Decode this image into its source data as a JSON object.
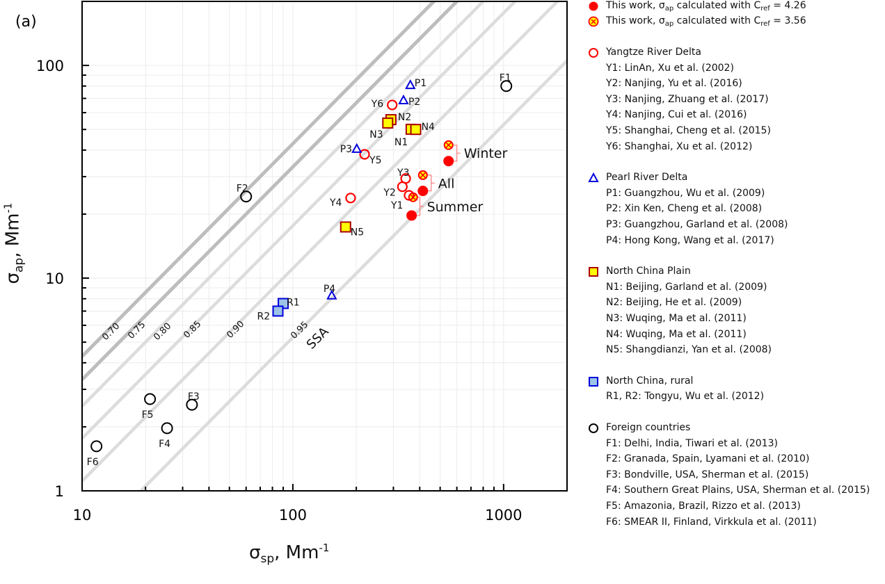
{
  "chart_data": {
    "type": "scatter",
    "panel_label": "(a)",
    "xlabel": {
      "symbol": "σ",
      "sub": "sp",
      "unit": ", Mm",
      "sup": "-1"
    },
    "ylabel": {
      "symbol": "σ",
      "sub": "ap",
      "unit": ", Mm",
      "sup": "-1"
    },
    "x_scale": "log",
    "y_scale": "log",
    "xlim": [
      10,
      2000
    ],
    "ylim": [
      1,
      200
    ],
    "x_ticks": [
      "10",
      "100",
      "1000"
    ],
    "y_ticks": [
      "1",
      "10",
      "100"
    ],
    "grid": true,
    "legend_placement": "right-outside",
    "ssa_lines": {
      "values": [
        0.7,
        0.75,
        0.8,
        0.85,
        0.9,
        0.95
      ],
      "labels": [
        "0.70",
        "0.75",
        "0.80",
        "0.85",
        "0.90",
        "0.95"
      ],
      "title": "SSA"
    },
    "colors": {
      "red": "#ff0000",
      "blue": "#0000dd",
      "yellow": "#ffff00",
      "darkred": "#aa0000",
      "lightblue": "#9dc3e6",
      "gray": "#bbbbbb"
    },
    "series": [
      {
        "name": "This work, σap calculated with Cref = 4.26",
        "marker": "filled-circle",
        "points": [
          {
            "label": "Winter",
            "x": 548,
            "y": 35.5
          },
          {
            "label": "All",
            "x": 414,
            "y": 25.7
          },
          {
            "label": "Summer",
            "x": 366,
            "y": 19.7
          }
        ]
      },
      {
        "name": "This work, σap calculated with Cref = 3.56",
        "marker": "crossed-circle",
        "points": [
          {
            "label": "Winter",
            "x": 548,
            "y": 42.2
          },
          {
            "label": "All",
            "x": 414,
            "y": 30.5
          },
          {
            "label": "Summer",
            "x": 372,
            "y": 24.0
          }
        ]
      },
      {
        "name": "Yangtze River Delta",
        "marker": "open-circle-red",
        "points": [
          {
            "label": "Y1",
            "x": 356,
            "y": 24.5
          },
          {
            "label": "Y2",
            "x": 331,
            "y": 26.9
          },
          {
            "label": "Y3",
            "x": 343,
            "y": 29.4
          },
          {
            "label": "Y4",
            "x": 188,
            "y": 23.8
          },
          {
            "label": "Y5",
            "x": 219,
            "y": 38.2
          },
          {
            "label": "Y6",
            "x": 296,
            "y": 65.2
          }
        ]
      },
      {
        "name": "Pearl River Delta",
        "marker": "open-triangle-blue",
        "points": [
          {
            "label": "P1",
            "x": 361,
            "y": 81
          },
          {
            "label": "P2",
            "x": 335,
            "y": 68.7
          },
          {
            "label": "P3",
            "x": 201,
            "y": 40.6
          },
          {
            "label": "P4",
            "x": 153,
            "y": 8.3
          }
        ]
      },
      {
        "name": "North China Plain",
        "marker": "yellow-square",
        "points": [
          {
            "label": "N1",
            "x": 364,
            "y": 50.1
          },
          {
            "label": "N2",
            "x": 292,
            "y": 55.6
          },
          {
            "label": "N3",
            "x": 282,
            "y": 53.6
          },
          {
            "label": "N4",
            "x": 383,
            "y": 50.0
          },
          {
            "label": "N5",
            "x": 178,
            "y": 17.4
          }
        ]
      },
      {
        "name": "North China, rural",
        "marker": "blue-square",
        "points": [
          {
            "label": "R1",
            "x": 90,
            "y": 7.6
          },
          {
            "label": "R2",
            "x": 85,
            "y": 7.0
          }
        ]
      },
      {
        "name": "Foreign countries",
        "marker": "open-circle-black",
        "points": [
          {
            "label": "F1",
            "x": 1030,
            "y": 80
          },
          {
            "label": "F2",
            "x": 60,
            "y": 24.2
          },
          {
            "label": "F3",
            "x": 33.2,
            "y": 2.54
          },
          {
            "label": "F4",
            "x": 25.3,
            "y": 1.97
          },
          {
            "label": "F5",
            "x": 21,
            "y": 2.7
          },
          {
            "label": "F6",
            "x": 11.7,
            "y": 1.62
          }
        ]
      }
    ]
  },
  "legend": {
    "this_work_1": {
      "a": "This work, σ",
      "b": "ap",
      "c": " calculated with C",
      "d": "ref",
      "e": " = 4.26"
    },
    "this_work_2": {
      "a": "This work, σ",
      "b": "ap",
      "c": " calculated with C",
      "d": "ref",
      "e": " = 3.56"
    },
    "groups": [
      {
        "title": "Yangtze River Delta",
        "items": [
          "Y1: LinAn, Xu et al. (2002)",
          "Y2: Nanjing, Yu et al. (2016)",
          "Y3: Nanjing, Zhuang et al. (2017)",
          "Y4: Nanjing, Cui et al. (2016)",
          "Y5: Shanghai, Cheng et al. (2015)",
          "Y6: Shanghai, Xu et al. (2012)"
        ]
      },
      {
        "title": "Pearl River Delta",
        "items": [
          "P1: Guangzhou, Wu et al. (2009)",
          "P2: Xin Ken, Cheng et al. (2008)",
          "P3: Guangzhou, Garland et al. (2008)",
          "P4: Hong Kong, Wang et al. (2017)"
        ]
      },
      {
        "title": "North China Plain",
        "items": [
          "N1: Beijing, Garland et al. (2009)",
          "N2: Beijing, He et al. (2009)",
          "N3: Wuqing, Ma et al. (2011)",
          "N4: Wuqing, Ma et al. (2011)",
          "N5: Shangdianzi, Yan et al. (2008)"
        ]
      },
      {
        "title": "North China, rural",
        "items": [
          "R1, R2: Tongyu, Wu et al. (2012)"
        ]
      },
      {
        "title": "Foreign countries",
        "items": [
          "F1: Delhi, India, Tiwari et al. (2013)",
          "F2: Granada, Spain, Lyamani et al. (2010)",
          "F3: Bondville, USA, Sherman et al. (2015)",
          "F4: Southern Great Plains, USA, Sherman et al. (2015)",
          "F5: Amazonia, Brazil, Rizzo et al. (2013)",
          "F6: SMEAR II, Finland, Virkkula et al. (2011)"
        ]
      }
    ]
  }
}
